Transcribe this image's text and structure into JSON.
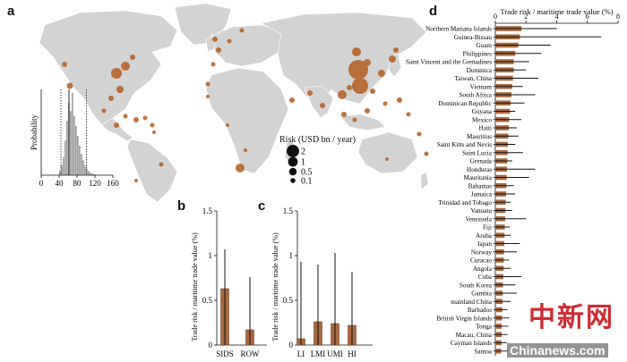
{
  "panel_labels": {
    "a": "a",
    "b": "b",
    "c": "c",
    "d": "d"
  },
  "colors": {
    "land": "#d3d3d3",
    "bubble": "#b5652b",
    "bar": "#a8683d",
    "hist": "#a0a0a0",
    "line": "#111111",
    "watermark_red": "#c8161d"
  },
  "map": {
    "legend_title": "Risk (USD bn / year)",
    "legend_items": [
      {
        "label": "2",
        "value": 2
      },
      {
        "label": "1",
        "value": 1
      },
      {
        "label": "0.5",
        "value": 0.5
      },
      {
        "label": "0.1",
        "value": 0.1
      }
    ]
  },
  "watermark": {
    "logo_text": "中新网",
    "site": "Chinanews.com"
  },
  "chart_data": [
    {
      "id": "a-inset",
      "type": "histogram",
      "xlabel": "Risk (USD bn / year)",
      "ylabel": "Probability",
      "xticks": [
        0,
        40,
        80,
        120,
        160
      ],
      "xlim": [
        0,
        160
      ],
      "bin_width": 4,
      "bins_start": 40,
      "heights": [
        0.05,
        0.12,
        0.22,
        0.42,
        0.66,
        0.88,
        0.78,
        1.0,
        0.72,
        0.6,
        0.48,
        0.36,
        0.26,
        0.18,
        0.12,
        0.08,
        0.05,
        0.03,
        0.02,
        0.01
      ],
      "dotted_lines": [
        44,
        101
      ],
      "solid_line": 62
    },
    {
      "id": "b",
      "type": "bar",
      "title": "",
      "ylabel": "Trade risk / maritime trade value (%)",
      "categories": [
        "SIDS",
        "ROW"
      ],
      "values": [
        0.63,
        0.17
      ],
      "upper": [
        1.07,
        0.76
      ],
      "lower": [
        0,
        0
      ],
      "ylim": [
        0,
        1.5
      ],
      "yticks": [
        0,
        0.5,
        1,
        1.5
      ],
      "ytick_labels": [
        "0",
        "0.5",
        "1",
        "1.5"
      ]
    },
    {
      "id": "c",
      "type": "bar",
      "ylabel": "Trade risk / maritime trade value (%)",
      "categories": [
        "LI",
        "LMI",
        "UMI",
        "HI"
      ],
      "values": [
        0.07,
        0.26,
        0.24,
        0.22
      ],
      "upper": [
        0.93,
        0.9,
        1.03,
        0.82
      ],
      "lower": [
        0,
        0,
        0,
        0
      ],
      "ylim": [
        0,
        1.5
      ],
      "yticks": [
        0,
        0.5,
        1,
        1.5
      ],
      "ytick_labels": [
        "0",
        "0.5",
        "1",
        "1.5"
      ]
    },
    {
      "id": "d",
      "type": "bar",
      "orientation": "horizontal",
      "title": "Trade risk / maritime trade value (%)",
      "xticks": [
        0,
        2,
        4,
        6,
        8
      ],
      "xlim": [
        0,
        8
      ],
      "categories": [
        "Northern Mariana Islands",
        "Guinea-Bissau",
        "Guam",
        "Philippines",
        "Saint Vincent and the Grenadines",
        "Dominica",
        "Taiwan, China",
        "Vietnam",
        "South Africa",
        "Dominican Republic",
        "Guyana",
        "Mexico",
        "Haiti",
        "Mauritius",
        "Saint Kitts and Nevis",
        "Saint Lucia",
        "Grenada",
        "Honduras",
        "Mauritania",
        "Bahamas",
        "Jamaica",
        "Trinidad and Tobago",
        "Vanuatu",
        "Venezuela",
        "Fiji",
        "Aruba",
        "Japan",
        "Norway",
        "Curacao",
        "Angola",
        "Cuba",
        "South Korea",
        "Gambia",
        "mainland China",
        "Barbados",
        "British Virgin Islands",
        "Tonga",
        "Macau, China",
        "Cayman Islands",
        "Samoa"
      ],
      "values": [
        1.7,
        1.6,
        1.5,
        1.3,
        1.2,
        1.2,
        1.15,
        1.1,
        1.05,
        1.0,
        0.95,
        0.9,
        0.88,
        0.85,
        0.82,
        0.8,
        0.78,
        0.76,
        0.74,
        0.72,
        0.7,
        0.68,
        0.66,
        0.64,
        0.62,
        0.6,
        0.58,
        0.56,
        0.55,
        0.54,
        0.52,
        0.5,
        0.48,
        0.46,
        0.45,
        0.44,
        0.42,
        0.41,
        0.4,
        0.38
      ],
      "upper": [
        4.0,
        6.9,
        3.6,
        3.0,
        2.2,
        2.0,
        2.8,
        1.8,
        2.6,
        1.9,
        1.3,
        1.7,
        1.4,
        1.5,
        1.3,
        1.8,
        1.1,
        2.6,
        2.2,
        1.2,
        1.3,
        1.0,
        1.1,
        2.0,
        0.95,
        1.0,
        1.6,
        1.4,
        0.9,
        1.0,
        1.7,
        1.3,
        1.4,
        1.0,
        0.8,
        0.9,
        0.85,
        0.8,
        0.75,
        0.8
      ]
    }
  ]
}
